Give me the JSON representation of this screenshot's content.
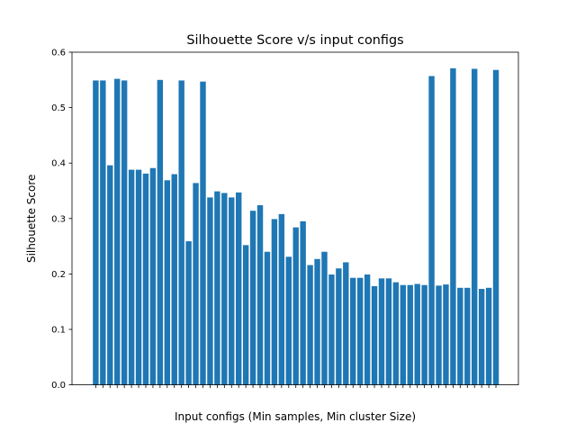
{
  "chart_data": {
    "type": "bar",
    "title": "Silhouette Score v/s input configs",
    "xlabel": "Input configs (Min samples, Min cluster Size)",
    "ylabel": "Silhouette Score",
    "ylim": [
      0,
      0.6
    ],
    "yticks": [
      "0.0",
      "0.1",
      "0.2",
      "0.3",
      "0.4",
      "0.5",
      "0.6"
    ],
    "grid": false,
    "bar_color": "#1f77b4",
    "values": [
      0.549,
      0.549,
      0.396,
      0.552,
      0.549,
      0.388,
      0.388,
      0.381,
      0.391,
      0.55,
      0.369,
      0.38,
      0.549,
      0.259,
      0.364,
      0.547,
      0.338,
      0.349,
      0.346,
      0.338,
      0.347,
      0.252,
      0.314,
      0.324,
      0.24,
      0.299,
      0.308,
      0.231,
      0.284,
      0.295,
      0.216,
      0.227,
      0.24,
      0.199,
      0.21,
      0.221,
      0.193,
      0.193,
      0.199,
      0.178,
      0.192,
      0.192,
      0.185,
      0.18,
      0.18,
      0.182,
      0.18,
      0.557,
      0.179,
      0.181,
      0.571,
      0.175,
      0.175,
      0.57,
      0.173,
      0.175,
      0.568
    ]
  }
}
